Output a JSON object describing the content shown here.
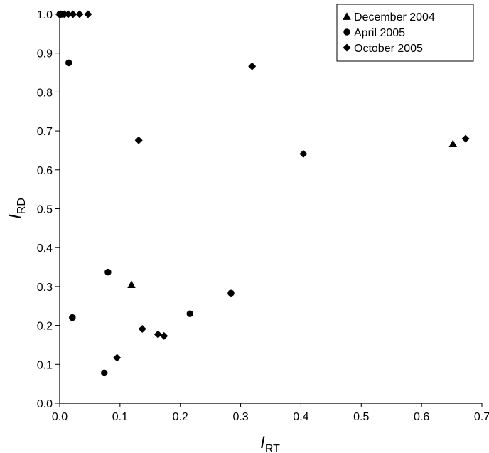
{
  "chart_data": {
    "type": "scatter",
    "xlabel": {
      "main": "I",
      "sub": "RT"
    },
    "ylabel": {
      "main": "I",
      "sub": "RD"
    },
    "xlim": [
      0,
      0.7
    ],
    "ylim": [
      0,
      1.0
    ],
    "xticks": [
      "0.0",
      "0.1",
      "0.2",
      "0.3",
      "0.4",
      "0.5",
      "0.6",
      "0.7"
    ],
    "yticks": [
      "0.0",
      "0.1",
      "0.2",
      "0.3",
      "0.4",
      "0.5",
      "0.6",
      "0.7",
      "0.8",
      "0.9",
      "1.0"
    ],
    "grid": false,
    "legend_position": "top-right",
    "series": [
      {
        "name": "December 2004",
        "marker": "triangle",
        "color": "#000000",
        "points": [
          [
            0.119,
            0.305
          ],
          [
            0.652,
            0.667
          ]
        ]
      },
      {
        "name": "April 2005",
        "marker": "circle",
        "color": "#000000",
        "points": [
          [
            0.0,
            1.0
          ],
          [
            0.005,
            1.0
          ],
          [
            0.015,
            0.875
          ],
          [
            0.021,
            0.22
          ],
          [
            0.074,
            0.078
          ],
          [
            0.08,
            0.337
          ],
          [
            0.216,
            0.23
          ],
          [
            0.284,
            0.283
          ]
        ]
      },
      {
        "name": "October 2005",
        "marker": "diamond",
        "color": "#000000",
        "points": [
          [
            0.002,
            1.0
          ],
          [
            0.008,
            1.0
          ],
          [
            0.014,
            1.0
          ],
          [
            0.022,
            1.0
          ],
          [
            0.033,
            1.0
          ],
          [
            0.047,
            1.0
          ],
          [
            0.095,
            0.117
          ],
          [
            0.131,
            0.676
          ],
          [
            0.137,
            0.191
          ],
          [
            0.163,
            0.177
          ],
          [
            0.173,
            0.173
          ],
          [
            0.319,
            0.866
          ],
          [
            0.404,
            0.641
          ],
          [
            0.673,
            0.68
          ]
        ]
      }
    ]
  }
}
